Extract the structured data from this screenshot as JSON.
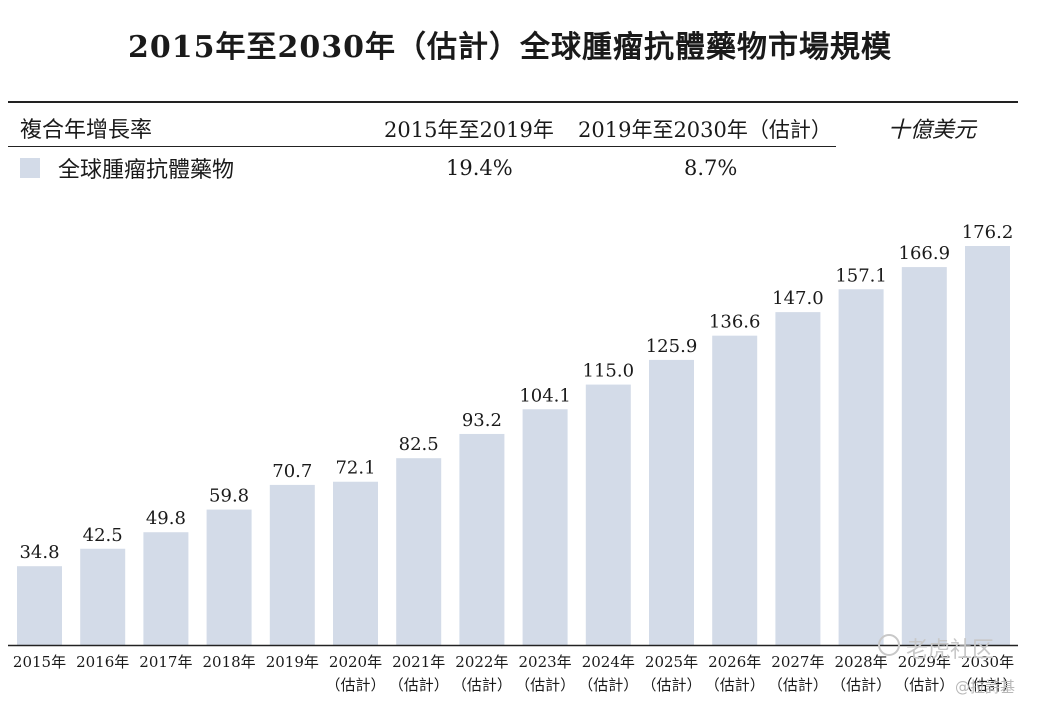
{
  "title": "2015年至2030年（估計）全球腫瘤抗體藥物市場規模",
  "cagr_table": {
    "label": "複合年增長率",
    "col1_header": "2015年至2019年",
    "col2_header": "2019年至2030年（估計）",
    "series_label": "全球腫瘤抗體藥物",
    "col1_value": "19.4%",
    "col2_value": "8.7%"
  },
  "unit": "十億美元",
  "watermark": "老虎社区",
  "watermark_small": "@拉詩基",
  "colors": {
    "bar": "#d3dbe8",
    "axis": "#222222",
    "text": "#1a1a1a"
  },
  "chart_data": {
    "type": "bar",
    "categories": [
      "2015年",
      "2016年",
      "2017年",
      "2018年",
      "2019年",
      "2020年",
      "2021年",
      "2022年",
      "2023年",
      "2024年",
      "2025年",
      "2026年",
      "2027年",
      "2028年",
      "2029年",
      "2030年"
    ],
    "category_sublabels": [
      "",
      "",
      "",
      "",
      "",
      "（估計）",
      "（估計）",
      "（估計）",
      "（估計）",
      "（估計）",
      "（估計）",
      "（估計）",
      "（估計）",
      "（估計）",
      "（估計）",
      "（估計）"
    ],
    "values": [
      34.8,
      42.5,
      49.8,
      59.8,
      70.7,
      72.1,
      82.5,
      93.2,
      104.1,
      115.0,
      125.9,
      136.6,
      147.0,
      157.1,
      166.9,
      176.2
    ],
    "value_labels": [
      "34.8",
      "42.5",
      "49.8",
      "59.8",
      "70.7",
      "72.1",
      "82.5",
      "93.2",
      "104.1",
      "115.0",
      "125.9",
      "136.6",
      "147.0",
      "157.1",
      "166.9",
      "176.2"
    ],
    "ylim": [
      0,
      176.2
    ],
    "grid": false,
    "legend": "top-left",
    "ylabel": "十億美元",
    "xlabel": ""
  }
}
